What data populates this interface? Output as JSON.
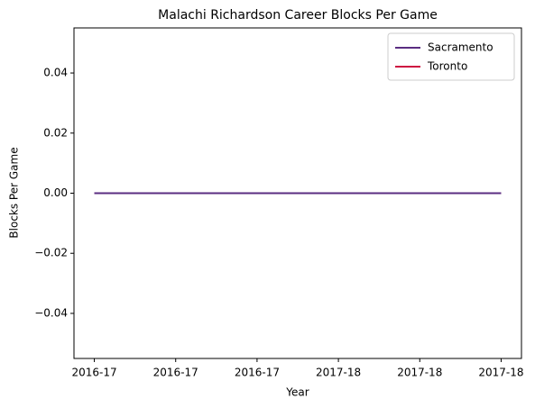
{
  "chart_data": {
    "type": "line",
    "title": "Malachi Richardson Career Blocks Per Game",
    "x_label": "Year",
    "y_label": "Blocks Per Game",
    "x": [
      0,
      1,
      2,
      3,
      4,
      5
    ],
    "series": [
      {
        "name": "Sacramento",
        "color": "#5a2d81",
        "values": [
          0,
          0,
          0,
          0,
          0,
          0
        ]
      },
      {
        "name": "Toronto",
        "color": "#ce1141",
        "values": [
          0,
          0,
          0,
          0,
          0,
          0
        ]
      }
    ],
    "xlim": [
      -0.25,
      5.25
    ],
    "xticks": [
      {
        "value": 0,
        "label": "2016-17"
      },
      {
        "value": 1,
        "label": "2016-17"
      },
      {
        "value": 2,
        "label": "2016-17"
      },
      {
        "value": 3,
        "label": "2017-18"
      },
      {
        "value": 4,
        "label": "2017-18"
      },
      {
        "value": 5,
        "label": "2017-18"
      }
    ],
    "ylim": [
      -0.055,
      0.055
    ],
    "yticks": [
      {
        "value": -0.04,
        "label": "−0.04"
      },
      {
        "value": -0.02,
        "label": "−0.02"
      },
      {
        "value": 0,
        "label": "0.00"
      },
      {
        "value": 0.02,
        "label": "0.02"
      },
      {
        "value": 0.04,
        "label": "0.04"
      }
    ],
    "legend": "upper right"
  }
}
